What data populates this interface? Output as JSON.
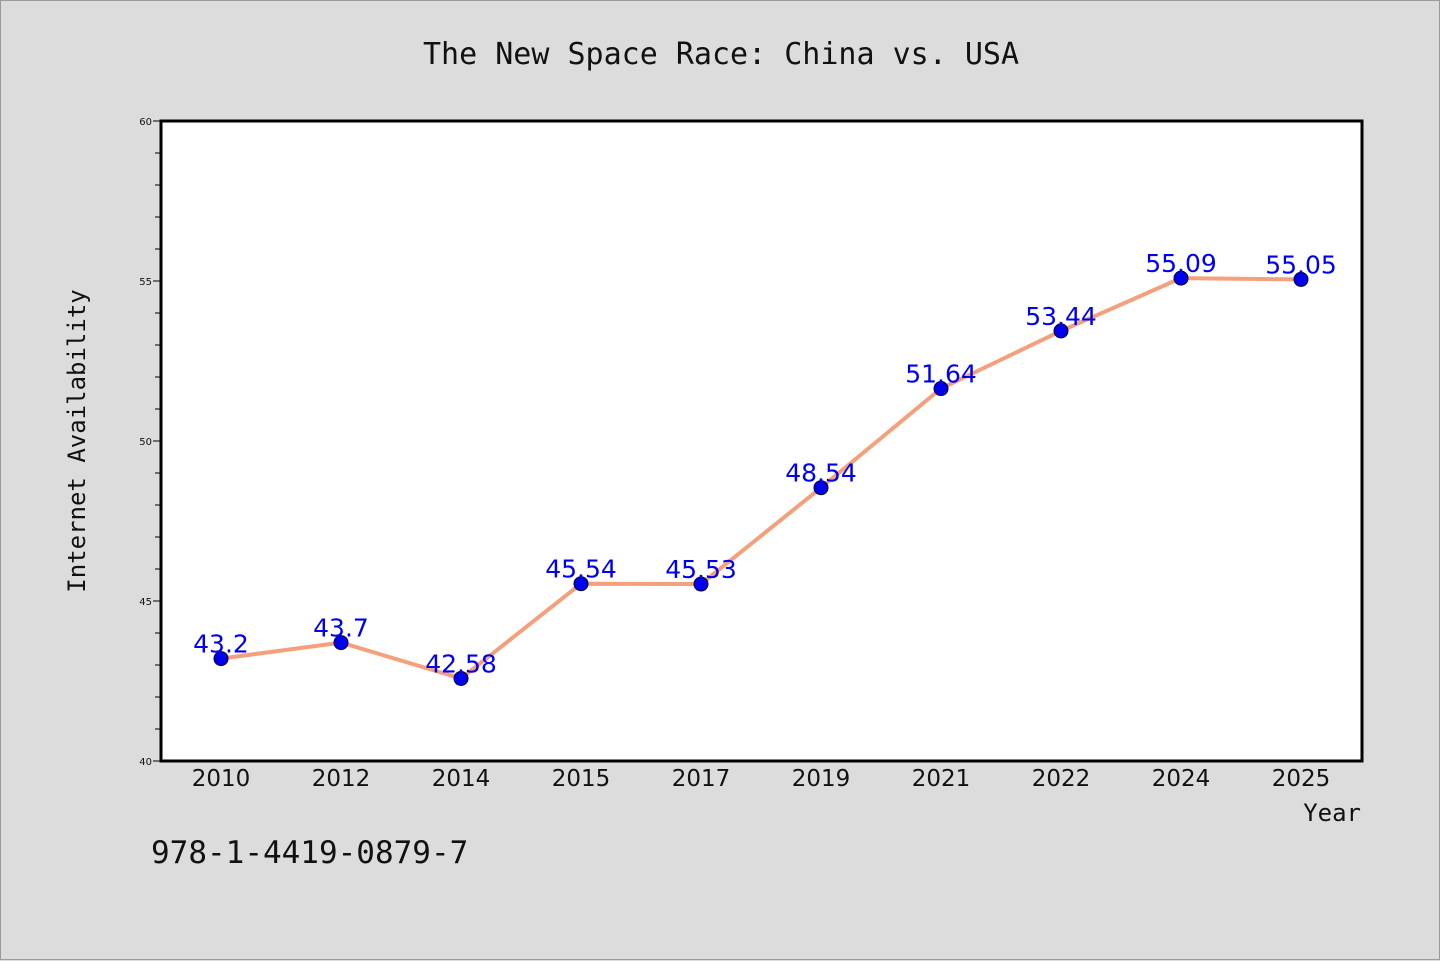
{
  "chart_data": {
    "type": "line",
    "title": "The New Space Race: China vs. USA",
    "xlabel": "Year",
    "ylabel": "Internet Availability",
    "categories": [
      "2010",
      "2012",
      "2014",
      "2015",
      "2017",
      "2019",
      "2021",
      "2022",
      "2024",
      "2025"
    ],
    "series": [
      {
        "values": [
          43.2,
          43.7,
          42.58,
          45.54,
          45.53,
          48.54,
          51.64,
          53.44,
          55.09,
          55.05
        ],
        "labels": [
          "43.2",
          "43.7",
          "42.58",
          "45.54",
          "45.53",
          "48.54",
          "51.64",
          "53.44",
          "55.09",
          "55.05"
        ],
        "line_color": "#f4a07c",
        "marker_color": "#0000ee",
        "label_color": "#0000ee"
      }
    ],
    "ylim": [
      40,
      60
    ],
    "yticks": [
      40,
      45,
      50,
      55,
      60
    ],
    "ytick_labels": [
      "40",
      "45",
      "50",
      "55",
      "60"
    ],
    "grid": false,
    "background": "#dcdcdc",
    "plot_background": "#ffffff"
  },
  "footer": {
    "isbn": "978-1-4419-0879-7"
  }
}
